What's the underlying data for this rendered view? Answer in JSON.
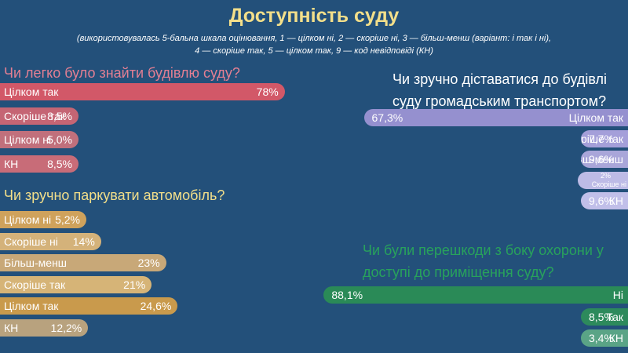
{
  "page": {
    "title": "Доступність суду",
    "subtitle_line1": "(використовувалась 5-бальна шкала оцінювання, 1 — цілком ні, 2 — скоріше ні, 3 — більш-менш (варіант: і так і ні),",
    "subtitle_line2": "4 — скоріше так, 5 — цілком так, 9 — код невідповіді (КН)"
  },
  "colors": {
    "background": "#23507a",
    "title": "#f3df8a",
    "q1": "#cf5a6a",
    "q1_text": "#e37f93",
    "q2": "#c49a57",
    "q2_text": "#f3df8a",
    "q3": "#9b97d4",
    "q3_text": "#ffffff",
    "q4": "#2a8a57",
    "q4_text": "#28a25c"
  },
  "chart_data": [
    {
      "type": "bar",
      "title": "Чи легко було знайти будівлю суду?",
      "series": [
        {
          "categories": [
            "Цілком так",
            "Скоріше так",
            "Цілком ні",
            "КН"
          ],
          "values": [
            78,
            8.5,
            5.0,
            8.5
          ],
          "value_labels": [
            "78%",
            "8,5%",
            "5,0%",
            "8,5%"
          ],
          "colors": [
            "#d25868",
            "#c56574",
            "#c1707c",
            "#c86c78"
          ]
        }
      ]
    },
    {
      "type": "bar",
      "title": "Чи зручно паркувати автомобіль?",
      "series": [
        {
          "categories": [
            "Цілком ні",
            "Скоріше ні",
            "Більш-менш",
            "Скоріше так",
            "Цілком так",
            "КН"
          ],
          "values": [
            5.2,
            14,
            23,
            21,
            24.6,
            12.2
          ],
          "value_labels": [
            "5,2%",
            "14%",
            "23%",
            "21%",
            "24,6%",
            "12,2%"
          ],
          "colors": [
            "#cfa25c",
            "#d4b27a",
            "#c8a878",
            "#d6b477",
            "#c99a4c",
            "#b8a27e"
          ]
        }
      ]
    },
    {
      "type": "bar",
      "title": "Чи зручно діставатися до будівлі суду громадським транспортом?",
      "title_line1": "Чи зручно діставатися до будівлі",
      "title_line2": "суду громадським транспортом?",
      "series": [
        {
          "categories": [
            "Цілком так",
            "Скоріше так",
            "Більш-менш",
            "Скоріше ні",
            "КН"
          ],
          "values": [
            67.3,
            7.7,
            9.6,
            2,
            9.6
          ],
          "value_labels": [
            "67,3%",
            "7,7%",
            "9,6%",
            "2%",
            "9,6%"
          ],
          "colors": [
            "#9590cf",
            "#a49fd9",
            "#a9a6d9",
            "#bdbbe6",
            "#c1bfe9"
          ]
        }
      ]
    },
    {
      "type": "bar",
      "title": "Чи були перешкоди з боку охорони у доступі до приміщення суду?",
      "title_line1": "Чи були перешкоди з боку охорони у",
      "title_line2": "доступі до приміщення суду?",
      "series": [
        {
          "categories": [
            "Ні",
            "Так",
            "КН"
          ],
          "values": [
            88.1,
            8.5,
            3.4
          ],
          "value_labels": [
            "88,1%",
            "8,5%",
            "3,4%"
          ],
          "colors": [
            "#2a8a57",
            "#2d8a5c",
            "#5aa486"
          ]
        }
      ]
    }
  ]
}
